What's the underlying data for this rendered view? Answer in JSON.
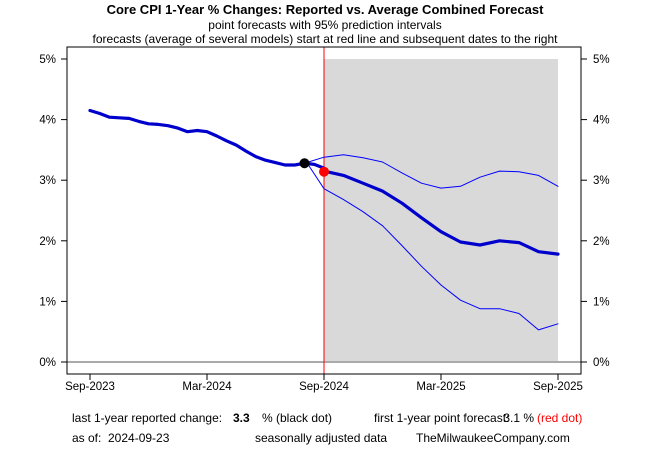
{
  "chart_data": {
    "type": "line",
    "title": "Core CPI 1-Year % Changes: Reported vs. Average Combined Forecast",
    "subtitle_lines": [
      "point forecasts with 95% prediction intervals",
      "forecasts (average of several models) start at red line and subsequent dates to the right"
    ],
    "xlabel": "",
    "ylabel": "",
    "x_tick_labels": [
      "Sep-2023",
      "Mar-2024",
      "Sep-2024",
      "Mar-2025",
      "Sep-2025"
    ],
    "x_tick_months": [
      0,
      6,
      12,
      18,
      24
    ],
    "y_tick_labels": [
      "0%",
      "1%",
      "2%",
      "3%",
      "4%",
      "5%"
    ],
    "y_tick_values": [
      0,
      1,
      2,
      3,
      4,
      5
    ],
    "xlim": [
      -1,
      25
    ],
    "ylim": [
      0,
      5
    ],
    "x_unit": "months since Sep-2023",
    "forecast_start_month": 12,
    "shaded_region": [
      12,
      24
    ],
    "series": [
      {
        "name": "reported",
        "role": "history",
        "color": "#0000CC",
        "x": [
          0,
          0.5,
          1,
          1.5,
          2,
          2.5,
          3,
          3.5,
          4,
          4.5,
          5,
          5.5,
          6,
          6.5,
          7,
          7.5,
          8,
          8.5,
          9,
          9.5,
          10,
          10.5,
          11,
          11.5,
          12
        ],
        "values": [
          4.15,
          4.1,
          4.04,
          4.03,
          4.02,
          3.97,
          3.93,
          3.92,
          3.9,
          3.86,
          3.8,
          3.82,
          3.8,
          3.73,
          3.65,
          3.58,
          3.48,
          3.39,
          3.33,
          3.29,
          3.25,
          3.25,
          3.28,
          3.26,
          3.2
        ]
      },
      {
        "name": "average forecast",
        "role": "point forecast",
        "color": "#0000CC",
        "x": [
          12,
          13,
          14,
          15,
          16,
          17,
          18,
          19,
          20,
          21,
          22,
          23,
          24
        ],
        "values": [
          3.15,
          3.08,
          2.95,
          2.82,
          2.62,
          2.38,
          2.15,
          1.98,
          1.93,
          2.0,
          1.97,
          1.82,
          1.78
        ]
      },
      {
        "name": "upper 95% interval",
        "role": "band",
        "color": "#0000FF",
        "x": [
          11.2,
          12,
          13,
          14,
          15,
          16,
          17,
          18,
          19,
          20,
          21,
          22,
          23,
          24
        ],
        "values": [
          3.3,
          3.38,
          3.42,
          3.37,
          3.3,
          3.12,
          2.95,
          2.87,
          2.9,
          3.05,
          3.15,
          3.14,
          3.08,
          2.9
        ]
      },
      {
        "name": "lower 95% interval",
        "role": "band",
        "color": "#0000FF",
        "x": [
          11.2,
          12,
          13,
          14,
          15,
          16,
          17,
          18,
          19,
          20,
          21,
          22,
          23,
          24
        ],
        "values": [
          3.25,
          2.86,
          2.68,
          2.48,
          2.25,
          1.92,
          1.58,
          1.27,
          1.02,
          0.88,
          0.88,
          0.8,
          0.53,
          0.63
        ]
      }
    ],
    "markers": [
      {
        "name": "last reported",
        "x": 11,
        "value": 3.28,
        "color": "#000000"
      },
      {
        "name": "first forecast",
        "x": 12,
        "value": 3.14,
        "color": "#FF0000"
      }
    ],
    "footer": {
      "reported_label": "last 1-year reported change:",
      "reported_value": "3.3",
      "reported_suffix": "% (black dot)",
      "forecast_label": "first 1-year point forecast:",
      "forecast_value": "3.1 %",
      "forecast_suffix": "(red dot)",
      "asof_label": "as of:",
      "asof_value": "2024-09-23",
      "note": "seasonally adjusted data",
      "source": "TheMilwaukeeCompany.com"
    }
  }
}
